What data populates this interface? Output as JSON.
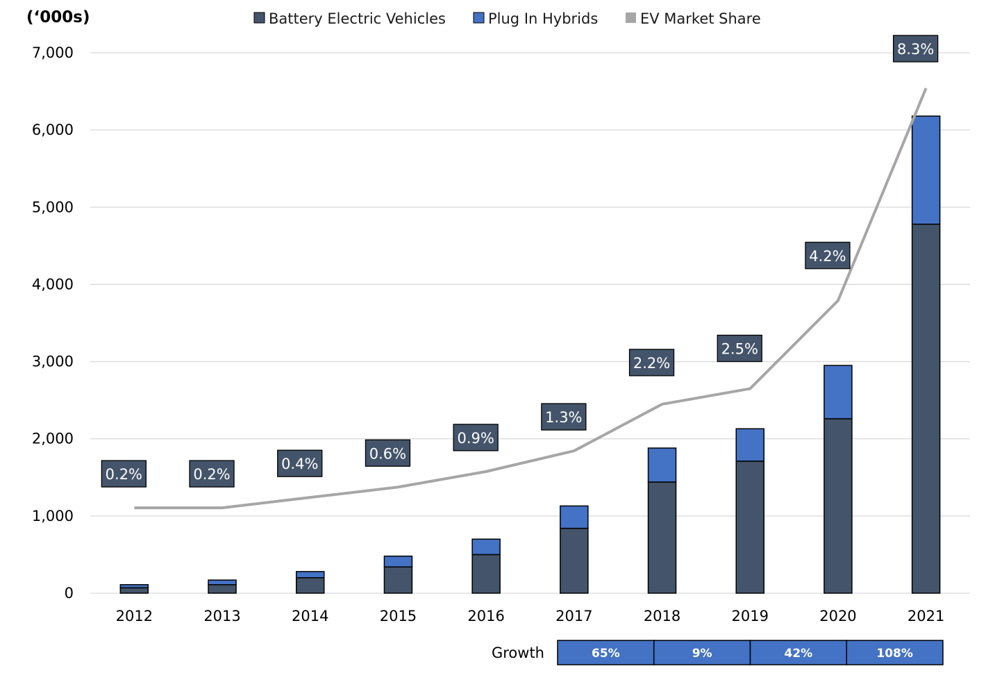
{
  "chart_data": {
    "type": "bar",
    "stacked": true,
    "unit_label": "(‘000s)",
    "categories": [
      "2012",
      "2013",
      "2014",
      "2015",
      "2016",
      "2017",
      "2018",
      "2019",
      "2020",
      "2021"
    ],
    "series": [
      {
        "name": "Battery Electric Vehicles",
        "color": "#44546a",
        "values": [
          70,
          110,
          200,
          340,
          500,
          840,
          1440,
          1710,
          2260,
          4780
        ]
      },
      {
        "name": "Plug In Hybrids",
        "color": "#4472c4",
        "values": [
          40,
          60,
          80,
          140,
          200,
          290,
          440,
          420,
          690,
          1400
        ]
      }
    ],
    "line_series": {
      "name": "EV Market Share",
      "color": "#a6a6a6",
      "values": [
        0.2,
        0.2,
        0.4,
        0.6,
        0.9,
        1.3,
        2.2,
        2.5,
        4.2,
        8.3
      ],
      "labels": [
        "0.2%",
        "0.2%",
        "0.4%",
        "0.6%",
        "0.9%",
        "1.3%",
        "2.2%",
        "2.5%",
        "4.2%",
        "8.3%"
      ],
      "label_color": "#44546a"
    },
    "y_ticks": [
      "0",
      "1,000",
      "2,000",
      "3,000",
      "4,000",
      "5,000",
      "6,000",
      "7,000"
    ],
    "ylim": [
      0,
      7000
    ],
    "grid": true,
    "legend_position": "top",
    "growth": {
      "label": "Growth",
      "color": "#4472c4",
      "items": [
        {
          "label": "65%",
          "from": "2017",
          "to": "2018"
        },
        {
          "label": "9%",
          "from": "2018",
          "to": "2019"
        },
        {
          "label": "42%",
          "from": "2019",
          "to": "2020"
        },
        {
          "label": "108%",
          "from": "2020",
          "to": "2021"
        }
      ]
    }
  }
}
